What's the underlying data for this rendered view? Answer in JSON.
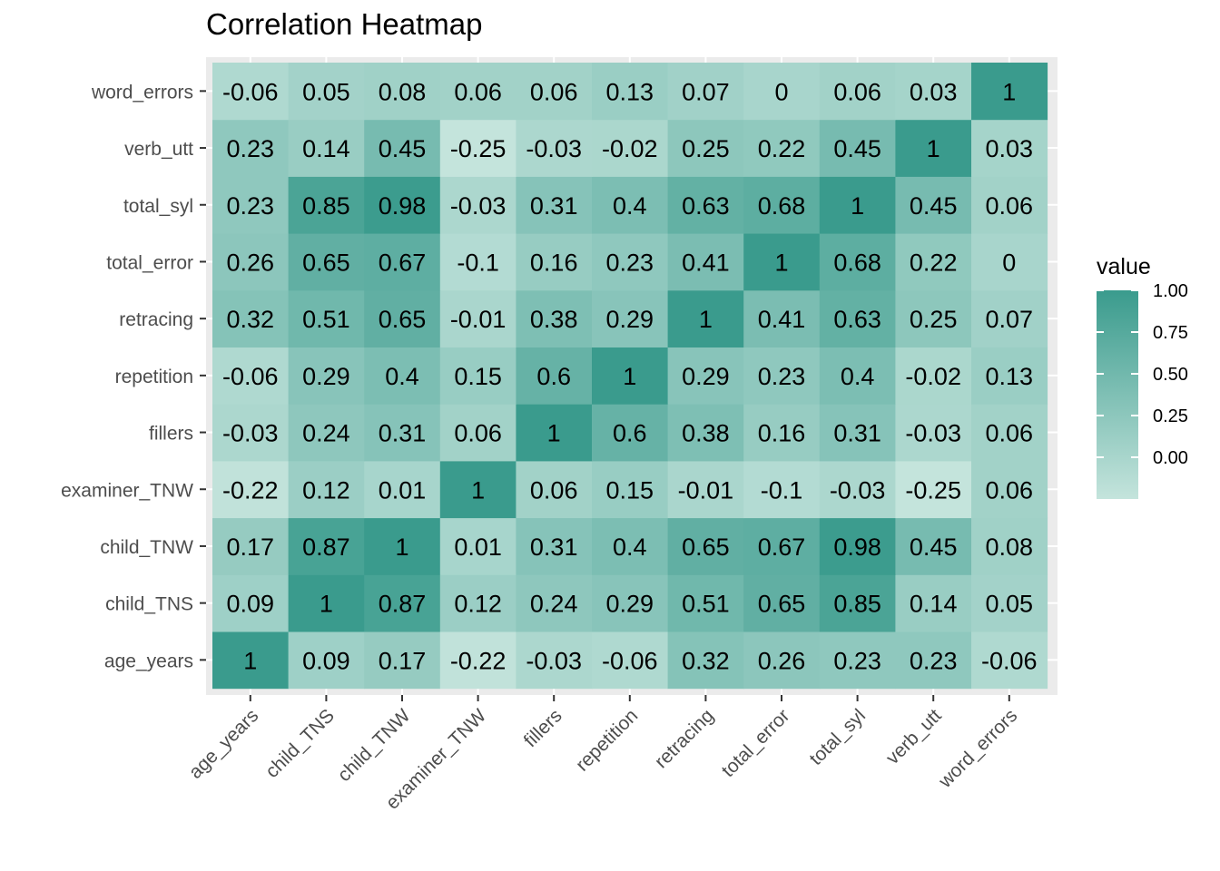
{
  "chart_data": {
    "type": "heatmap",
    "title": "Correlation Heatmap",
    "xlabel": "",
    "ylabel": "",
    "variables": [
      "age_years",
      "child_TNS",
      "child_TNW",
      "examiner_TNW",
      "fillers",
      "repetition",
      "retracing",
      "total_error",
      "total_syl",
      "verb_utt",
      "word_errors"
    ],
    "matrix": [
      [
        1,
        0.09,
        0.17,
        -0.22,
        -0.03,
        -0.06,
        0.32,
        0.26,
        0.23,
        0.23,
        -0.06
      ],
      [
        0.09,
        1,
        0.87,
        0.12,
        0.24,
        0.29,
        0.51,
        0.65,
        0.85,
        0.14,
        0.05
      ],
      [
        0.17,
        0.87,
        1,
        0.01,
        0.31,
        0.4,
        0.65,
        0.67,
        0.98,
        0.45,
        0.08
      ],
      [
        -0.22,
        0.12,
        0.01,
        1,
        0.06,
        0.15,
        -0.01,
        -0.1,
        -0.03,
        -0.25,
        0.06
      ],
      [
        -0.03,
        0.24,
        0.31,
        0.06,
        1,
        0.6,
        0.38,
        0.16,
        0.31,
        -0.03,
        0.06
      ],
      [
        -0.06,
        0.29,
        0.4,
        0.15,
        0.6,
        1,
        0.29,
        0.23,
        0.4,
        -0.02,
        0.13
      ],
      [
        0.32,
        0.51,
        0.65,
        -0.01,
        0.38,
        0.29,
        1,
        0.41,
        0.63,
        0.25,
        0.07
      ],
      [
        0.26,
        0.65,
        0.67,
        -0.1,
        0.16,
        0.23,
        0.41,
        1,
        0.68,
        0.22,
        0
      ],
      [
        0.23,
        0.85,
        0.98,
        -0.03,
        0.31,
        0.4,
        0.63,
        0.68,
        1,
        0.45,
        0.06
      ],
      [
        0.23,
        0.14,
        0.45,
        -0.25,
        -0.03,
        -0.02,
        0.25,
        0.22,
        0.45,
        1,
        0.03
      ],
      [
        -0.06,
        0.05,
        0.08,
        0.06,
        0.06,
        0.13,
        0.07,
        0,
        0.06,
        0.03,
        1
      ]
    ],
    "value_range": [
      -0.25,
      1
    ],
    "legend": {
      "title": "value",
      "ticks": [
        1.0,
        0.75,
        0.5,
        0.25,
        0.0
      ],
      "tick_labels": [
        "1.00",
        "0.75",
        "0.50",
        "0.25",
        "0.00"
      ],
      "placement": "right"
    },
    "colors": {
      "low": "#c4e4dc",
      "high": "#3a9b8d",
      "panel": "#ebebeb",
      "grid": "#ffffff"
    },
    "grid": true
  }
}
